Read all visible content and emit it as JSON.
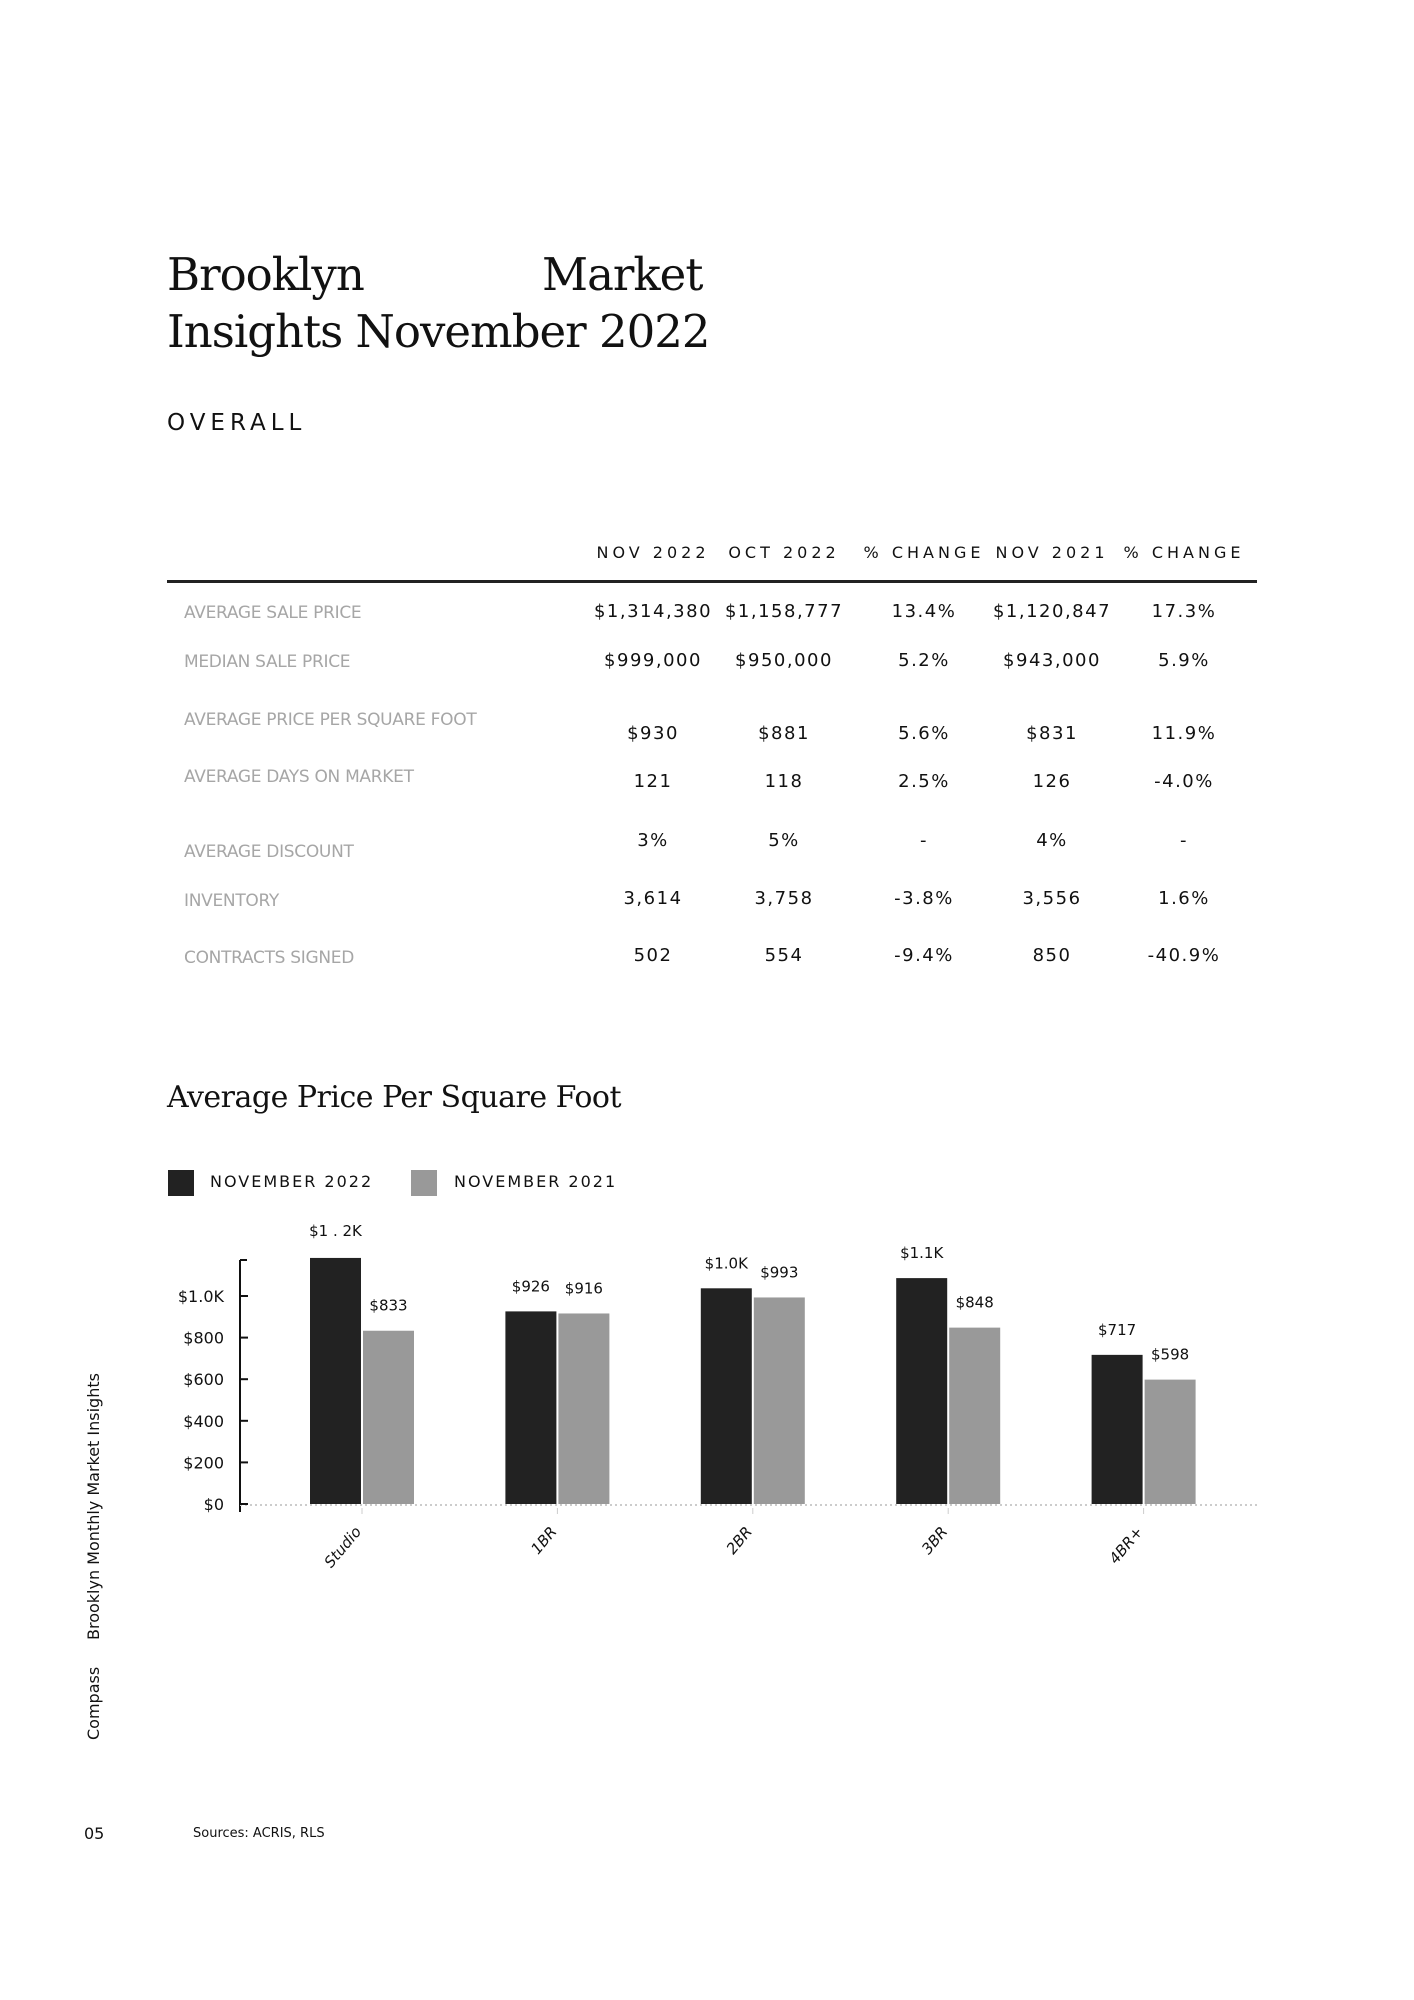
{
  "header": {
    "title_line1_a": "Brooklyn",
    "title_line1_b": "Market",
    "title_line2": "Insights November 2022"
  },
  "section_label": "OVERALL",
  "table": {
    "columns": [
      "NOV 2022",
      "OCT 2022",
      "% CHANGE",
      "NOV 2021",
      "% CHANGE"
    ],
    "rows": [
      {
        "label": "AVERAGE SALE PRICE",
        "values": [
          "$1,314,380",
          "$1,158,777",
          "13.4%",
          "$1,120,847",
          "17.3%"
        ]
      },
      {
        "label": "MEDIAN SALE PRICE",
        "values": [
          "$999,000",
          "$950,000",
          "5.2%",
          "$943,000",
          "5.9%"
        ]
      },
      {
        "label": "AVERAGE PRICE PER SQUARE FOOT",
        "values": [
          "$930",
          "$881",
          "5.6%",
          "$831",
          "11.9%"
        ]
      },
      {
        "label": "AVERAGE DAYS ON MARKET",
        "values": [
          "121",
          "118",
          "2.5%",
          "126",
          "-4.0%"
        ]
      },
      {
        "label": "AVERAGE DISCOUNT",
        "values": [
          "3%",
          "5%",
          "-",
          "4%",
          "-"
        ]
      },
      {
        "label": "INVENTORY",
        "values": [
          "3,614",
          "3,758",
          "-3.8%",
          "3,556",
          "1.6%"
        ]
      },
      {
        "label": "CONTRACTS SIGNED",
        "values": [
          "502",
          "554",
          "-9.4%",
          "850",
          "-40.9%"
        ]
      }
    ]
  },
  "chart_data": {
    "type": "bar",
    "title": "Average Price Per Square Foot",
    "categories": [
      "Studio",
      "1BR",
      "2BR",
      "3BR",
      "4BR+"
    ],
    "series": [
      {
        "name": "NOVEMBER 2022",
        "color": "#222222",
        "values": [
          1183,
          926,
          1037,
          1086,
          717
        ],
        "labels": [
          "$1 . 2K",
          "$926",
          "$1.0K",
          "$1.1K",
          "$717"
        ]
      },
      {
        "name": "NOVEMBER 2021",
        "color": "#999999",
        "values": [
          833,
          916,
          993,
          848,
          598
        ],
        "labels": [
          "$833",
          "$916",
          "$993",
          "$848",
          "$598"
        ]
      }
    ],
    "yticks": [
      {
        "v": 0,
        "label": "$0"
      },
      {
        "v": 200,
        "label": "$200"
      },
      {
        "v": 400,
        "label": "$400"
      },
      {
        "v": 600,
        "label": "$600"
      },
      {
        "v": 800,
        "label": "$800"
      },
      {
        "v": 1000,
        "label": "$1.0K"
      }
    ],
    "ylim": [
      0,
      1200
    ],
    "legend_position": "top-left",
    "xlabel": "",
    "ylabel": ""
  },
  "footer": {
    "side_title": "Brooklyn Monthly Market Insights",
    "brand": "Compass",
    "page_number": "05",
    "sources": "Sources: ACRIS, RLS"
  }
}
